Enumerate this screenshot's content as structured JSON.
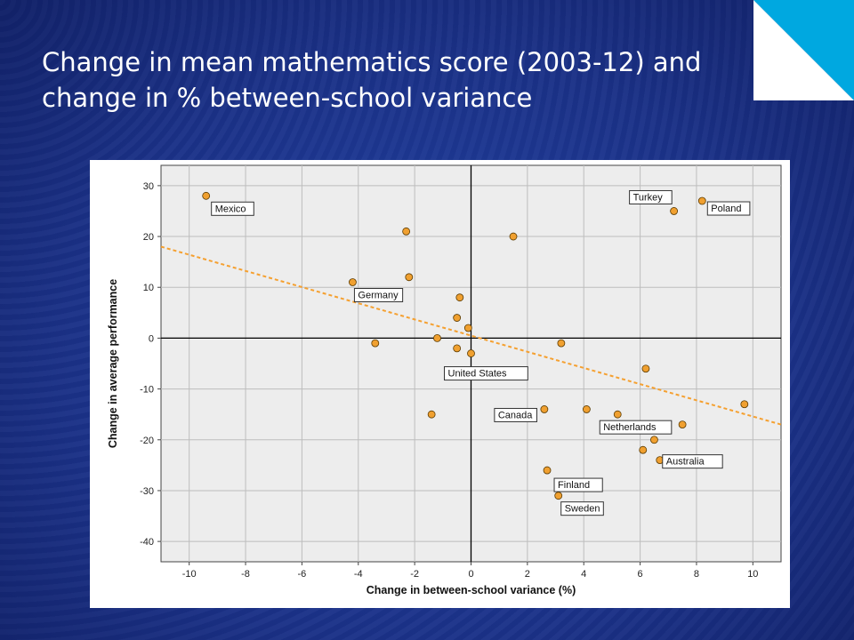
{
  "slide": {
    "title": "Change in mean mathematics score (2003-12) and change in % between-school variance"
  },
  "colors": {
    "background": "#1f3a8f",
    "corner_accent": "#00a8e0",
    "point_fill": "#f0a030",
    "trend_line": "#f5a030",
    "plot_bg": "#ededed"
  },
  "chart_data": {
    "type": "scatter",
    "title": "",
    "xlabel": "Change in between-school variance (%)",
    "ylabel": "Change in average performance",
    "xlim": [
      -11,
      11
    ],
    "ylim": [
      -44,
      34
    ],
    "xticks": [
      -10,
      -8,
      -6,
      -4,
      -2,
      0,
      2,
      4,
      6,
      8,
      10
    ],
    "yticks": [
      -40,
      -30,
      -20,
      -10,
      0,
      10,
      20,
      30
    ],
    "grid": true,
    "points": [
      {
        "x": -9.4,
        "y": 28,
        "label": "Mexico"
      },
      {
        "x": 8.2,
        "y": 27,
        "label": "Poland"
      },
      {
        "x": 7.2,
        "y": 25,
        "label": "Turkey"
      },
      {
        "x": -2.3,
        "y": 21,
        "label": ""
      },
      {
        "x": 1.5,
        "y": 20,
        "label": ""
      },
      {
        "x": -2.2,
        "y": 12,
        "label": ""
      },
      {
        "x": -4.2,
        "y": 11,
        "label": "Germany"
      },
      {
        "x": -0.4,
        "y": 8,
        "label": ""
      },
      {
        "x": -0.5,
        "y": 4,
        "label": ""
      },
      {
        "x": -0.1,
        "y": 2,
        "label": ""
      },
      {
        "x": -1.2,
        "y": 0,
        "label": ""
      },
      {
        "x": -3.4,
        "y": -1,
        "label": ""
      },
      {
        "x": 3.2,
        "y": -1,
        "label": ""
      },
      {
        "x": -0.5,
        "y": -2,
        "label": ""
      },
      {
        "x": 0.0,
        "y": -3,
        "label": "United States"
      },
      {
        "x": 6.2,
        "y": -6,
        "label": ""
      },
      {
        "x": 9.7,
        "y": -13,
        "label": ""
      },
      {
        "x": -1.4,
        "y": -15,
        "label": ""
      },
      {
        "x": 2.6,
        "y": -14,
        "label": "Canada"
      },
      {
        "x": 4.1,
        "y": -14,
        "label": ""
      },
      {
        "x": 5.2,
        "y": -15,
        "label": "Netherlands"
      },
      {
        "x": 7.5,
        "y": -17,
        "label": ""
      },
      {
        "x": 6.5,
        "y": -20,
        "label": ""
      },
      {
        "x": 6.7,
        "y": -24,
        "label": "Australia"
      },
      {
        "x": 6.1,
        "y": -22,
        "label": ""
      },
      {
        "x": 2.7,
        "y": -26,
        "label": "Finland"
      },
      {
        "x": 3.1,
        "y": -31,
        "label": "Sweden"
      }
    ],
    "trendline": {
      "x": [
        -11,
        11
      ],
      "y": [
        18,
        -17
      ]
    }
  }
}
